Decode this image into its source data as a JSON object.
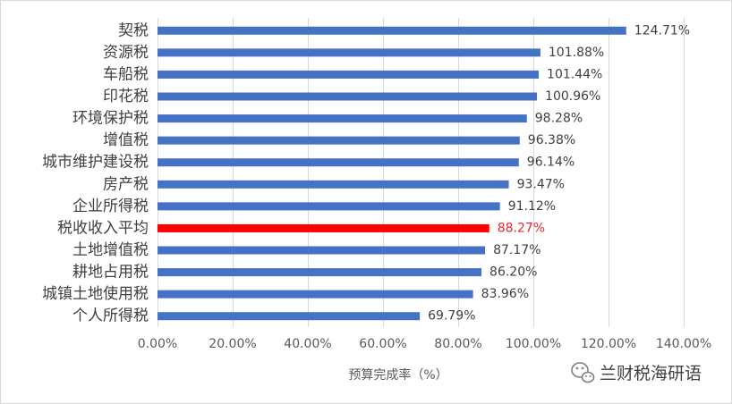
{
  "chart_data": {
    "type": "bar",
    "horizontal": true,
    "categories": [
      "契税",
      "资源税",
      "车船税",
      "印花税",
      "环境保护税",
      "增值税",
      "城市维护建设税",
      "房产税",
      "企业所得税",
      "税收收入平均",
      "土地增值税",
      "耕地占用税",
      "城镇土地使用税",
      "个人所得税"
    ],
    "values": [
      124.71,
      101.88,
      101.44,
      100.96,
      98.28,
      96.38,
      96.14,
      93.47,
      91.12,
      88.27,
      87.17,
      86.2,
      83.96,
      69.79
    ],
    "data_labels": [
      "124.71%",
      "101.88%",
      "101.44%",
      "100.96%",
      "98.28%",
      "96.38%",
      "96.14%",
      "93.47%",
      "91.12%",
      "88.27%",
      "87.17%",
      "86.20%",
      "83.96%",
      "69.79%"
    ],
    "xlabel": "预算完成率（%）",
    "xlim": [
      0,
      140
    ],
    "xticks": [
      0,
      20,
      40,
      60,
      80,
      100,
      120,
      140
    ],
    "xtick_labels": [
      "0.00%",
      "20.00%",
      "40.00%",
      "60.00%",
      "80.00%",
      "100.00%",
      "120.00%",
      "140.00%"
    ],
    "grid": {
      "vertical": true,
      "horizontal": false
    },
    "legend": false,
    "bar_colors": [
      "#4472C4",
      "#4472C4",
      "#4472C4",
      "#4472C4",
      "#4472C4",
      "#4472C4",
      "#4472C4",
      "#4472C4",
      "#4472C4",
      "#FF0000",
      "#4472C4",
      "#4472C4",
      "#4472C4",
      "#4472C4"
    ],
    "label_colors": [
      "#404040",
      "#404040",
      "#404040",
      "#404040",
      "#404040",
      "#404040",
      "#404040",
      "#404040",
      "#404040",
      "#E8262B",
      "#404040",
      "#404040",
      "#404040",
      "#404040"
    ],
    "gridline_color": "#D9D9D9"
  },
  "watermark": {
    "text": "兰财税海研语",
    "icon": "wechat-icon"
  }
}
